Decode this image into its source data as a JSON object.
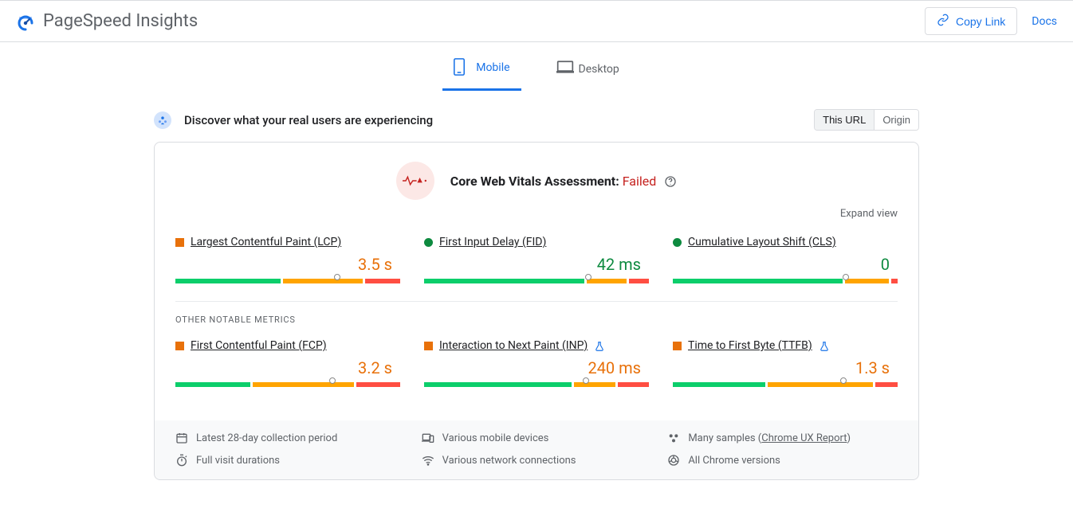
{
  "header": {
    "title": "PageSpeed Insights",
    "copy_link": "Copy Link",
    "docs": "Docs"
  },
  "tabs": {
    "mobile": "Mobile",
    "desktop": "Desktop",
    "active": "mobile"
  },
  "discover": {
    "text": "Discover what your real users are experiencing",
    "scope": {
      "this_url": "This URL",
      "origin": "Origin"
    }
  },
  "assessment": {
    "label": "Core Web Vitals Assessment: ",
    "status": "Failed",
    "status_color": "#c5221f",
    "expand": "Expand view"
  },
  "other_metrics_title": "OTHER NOTABLE METRICS",
  "colors": {
    "green": "#0cce6b",
    "orange": "#ffa400",
    "red": "#ff4e42"
  },
  "metrics_core": [
    {
      "name": "Largest Contentful Paint (LCP)",
      "value": "3.5 s",
      "status": "orange",
      "shape": "square",
      "dist": {
        "green": 48,
        "orange": 36,
        "red": 16
      },
      "marker": 72,
      "experimental": false
    },
    {
      "name": "First Input Delay (FID)",
      "value": "42 ms",
      "status": "green",
      "shape": "circle",
      "dist": {
        "green": 73,
        "orange": 18,
        "red": 9
      },
      "marker": 73,
      "experimental": false
    },
    {
      "name": "Cumulative Layout Shift (CLS)",
      "value": "0",
      "status": "green",
      "shape": "circle",
      "dist": {
        "green": 77,
        "orange": 20,
        "red": 3
      },
      "marker": 77,
      "experimental": false
    }
  ],
  "metrics_other": [
    {
      "name": "First Contentful Paint (FCP)",
      "value": "3.2 s",
      "status": "orange",
      "shape": "square",
      "dist": {
        "green": 34,
        "orange": 46,
        "red": 20
      },
      "marker": 70,
      "experimental": false
    },
    {
      "name": "Interaction to Next Paint (INP)",
      "value": "240 ms",
      "status": "orange",
      "shape": "square",
      "dist": {
        "green": 67,
        "orange": 19,
        "red": 14
      },
      "marker": 72,
      "experimental": true
    },
    {
      "name": "Time to First Byte (TTFB)",
      "value": "1.3 s",
      "status": "orange",
      "shape": "square",
      "dist": {
        "green": 42,
        "orange": 48,
        "red": 10
      },
      "marker": 76,
      "experimental": true
    }
  ],
  "footer": {
    "period": "Latest 28-day collection period",
    "devices": "Various mobile devices",
    "samples_prefix": "Many samples (",
    "samples_link": "Chrome UX Report",
    "samples_suffix": ")",
    "durations": "Full visit durations",
    "network": "Various network connections",
    "versions": "All Chrome versions"
  }
}
